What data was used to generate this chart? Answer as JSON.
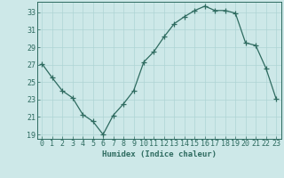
{
  "x": [
    0,
    1,
    2,
    3,
    4,
    5,
    6,
    7,
    8,
    9,
    10,
    11,
    12,
    13,
    14,
    15,
    16,
    17,
    18,
    19,
    20,
    21,
    22,
    23
  ],
  "y": [
    27.1,
    25.5,
    24.0,
    23.2,
    21.3,
    20.5,
    19.0,
    21.2,
    22.5,
    24.0,
    27.3,
    28.5,
    30.2,
    31.7,
    32.5,
    33.2,
    33.7,
    33.2,
    33.2,
    32.9,
    29.5,
    29.2,
    26.6,
    23.1
  ],
  "line_color": "#2e6b60",
  "marker": "+",
  "marker_size": 4,
  "bg_color": "#cde8e8",
  "grid_color": "#aed4d4",
  "axis_color": "#2e6b60",
  "xlabel": "Humidex (Indice chaleur)",
  "ylim": [
    18.5,
    34.2
  ],
  "xlim": [
    -0.5,
    23.5
  ],
  "yticks": [
    19,
    21,
    23,
    25,
    27,
    29,
    31,
    33
  ],
  "xticks": [
    0,
    1,
    2,
    3,
    4,
    5,
    6,
    7,
    8,
    9,
    10,
    11,
    12,
    13,
    14,
    15,
    16,
    17,
    18,
    19,
    20,
    21,
    22,
    23
  ],
  "font_size_label": 6.5,
  "font_size_tick": 6.0,
  "lw": 0.9,
  "markeredgewidth": 0.9
}
